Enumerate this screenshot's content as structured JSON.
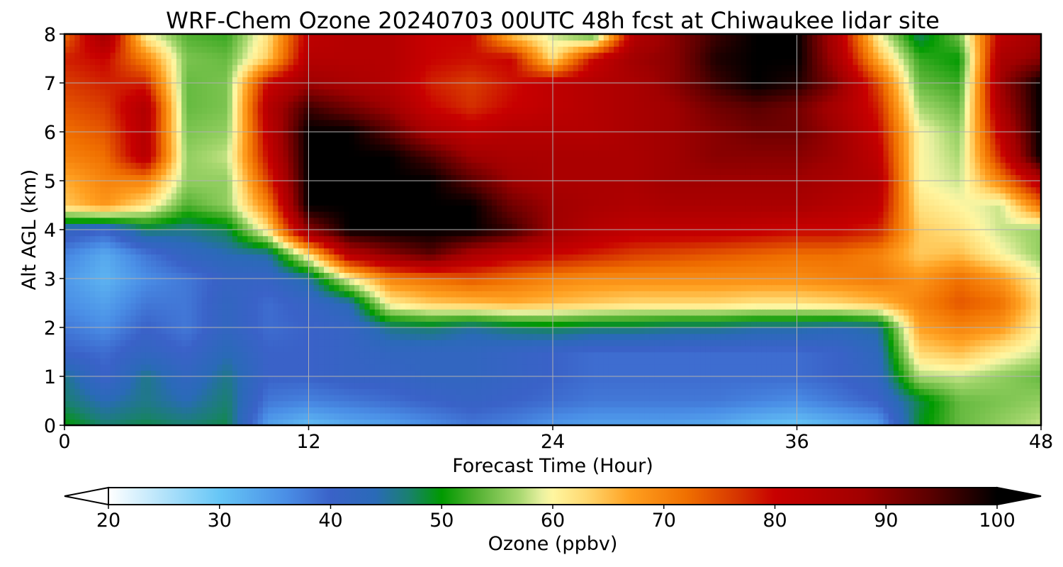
{
  "chart_data": {
    "type": "heatmap",
    "title": "WRF-Chem Ozone  20240703 00UTC 48h fcst at Chiwaukee lidar site",
    "xlabel": "Forecast Time (Hour)",
    "ylabel": "Alt AGL (km)",
    "xlim": [
      0,
      48
    ],
    "ylim": [
      0,
      8
    ],
    "xticks": [
      "0",
      "12",
      "24",
      "36",
      "48"
    ],
    "yticks": [
      "0",
      "1",
      "2",
      "3",
      "4",
      "5",
      "6",
      "7",
      "8"
    ],
    "grid": true,
    "colorbar": {
      "label": "Ozone  (ppbv)",
      "min": 20,
      "max": 100,
      "extend": "both",
      "ticks": [
        "20",
        "30",
        "40",
        "50",
        "60",
        "70",
        "80",
        "90",
        "100"
      ],
      "colors": [
        {
          "v": 20,
          "c": "#ffffff"
        },
        {
          "v": 30,
          "c": "#66c6f6"
        },
        {
          "v": 36,
          "c": "#4a8ee6"
        },
        {
          "v": 40,
          "c": "#3a62c8"
        },
        {
          "v": 44,
          "c": "#2a6ab8"
        },
        {
          "v": 47,
          "c": "#1a8070"
        },
        {
          "v": 50,
          "c": "#009a00"
        },
        {
          "v": 53,
          "c": "#50b030"
        },
        {
          "v": 57,
          "c": "#a8d870"
        },
        {
          "v": 59,
          "c": "#e8f0a0"
        },
        {
          "v": 60,
          "c": "#fff6a0"
        },
        {
          "v": 63,
          "c": "#ffd870"
        },
        {
          "v": 67,
          "c": "#ffa020"
        },
        {
          "v": 72,
          "c": "#f07000"
        },
        {
          "v": 77,
          "c": "#d43000"
        },
        {
          "v": 80,
          "c": "#c80000"
        },
        {
          "v": 88,
          "c": "#a00000"
        },
        {
          "v": 94,
          "c": "#5a0000"
        },
        {
          "v": 100,
          "c": "#000000"
        }
      ]
    },
    "x": [
      0,
      2,
      4,
      6,
      8,
      10,
      12,
      14,
      16,
      18,
      20,
      22,
      24,
      26,
      28,
      30,
      32,
      34,
      36,
      38,
      40,
      42,
      44,
      46,
      48
    ],
    "y": [
      0,
      0.5,
      1,
      1.5,
      2,
      2.5,
      3,
      3.5,
      4,
      4.5,
      5,
      5.5,
      6,
      6.5,
      7,
      7.5,
      8
    ],
    "z": [
      [
        50,
        47,
        48,
        47,
        48,
        34,
        31,
        33,
        34,
        36,
        38,
        37,
        35,
        34,
        34,
        34,
        33,
        31,
        30,
        32,
        34,
        49,
        54,
        56,
        58
      ],
      [
        47,
        44,
        46,
        44,
        47,
        38,
        37,
        38,
        39,
        40,
        41,
        40,
        39,
        38,
        38,
        38,
        38,
        37,
        36,
        38,
        40,
        48,
        54,
        55,
        56
      ],
      [
        46,
        40,
        46,
        42,
        46,
        40,
        40,
        41,
        41,
        42,
        42,
        41,
        40,
        39,
        39,
        39,
        39,
        39,
        39,
        40,
        42,
        57,
        58,
        56,
        54
      ],
      [
        40,
        39,
        42,
        40,
        44,
        40,
        40,
        41,
        42,
        42,
        42,
        41,
        40,
        39,
        39,
        39,
        39,
        39,
        39,
        40,
        43,
        63,
        65,
        61,
        58
      ],
      [
        38,
        36,
        40,
        38,
        42,
        39,
        40,
        41,
        46,
        47,
        45,
        47,
        48,
        47,
        47,
        46,
        46,
        45,
        45,
        44,
        45,
        67,
        70,
        68,
        60
      ],
      [
        36,
        34,
        38,
        38,
        42,
        39,
        41,
        44,
        61,
        64,
        65,
        66,
        65,
        64,
        63,
        63,
        63,
        62,
        62,
        63,
        65,
        70,
        74,
        72,
        62
      ],
      [
        35,
        32,
        36,
        38,
        41,
        41,
        45,
        60,
        70,
        72,
        74,
        72,
        70,
        69,
        69,
        69,
        69,
        69,
        69,
        70,
        71,
        68,
        72,
        68,
        60
      ],
      [
        37,
        33,
        38,
        42,
        44,
        45,
        62,
        84,
        90,
        94,
        86,
        82,
        80,
        78,
        76,
        75,
        74,
        73,
        72,
        72,
        70,
        64,
        65,
        60,
        56
      ],
      [
        42,
        40,
        47,
        46,
        48,
        62,
        90,
        100,
        100,
        100,
        100,
        96,
        88,
        84,
        82,
        82,
        82,
        81,
        80,
        80,
        78,
        64,
        62,
        58,
        56
      ],
      [
        64,
        68,
        62,
        53,
        56,
        70,
        100,
        100,
        100,
        100,
        100,
        92,
        88,
        86,
        85,
        86,
        86,
        86,
        86,
        84,
        82,
        62,
        60,
        58,
        72
      ],
      [
        66,
        70,
        70,
        56,
        56,
        76,
        100,
        100,
        100,
        100,
        94,
        88,
        86,
        86,
        86,
        88,
        88,
        88,
        88,
        86,
        84,
        60,
        58,
        70,
        84
      ],
      [
        70,
        72,
        84,
        56,
        58,
        80,
        100,
        100,
        100,
        95,
        88,
        86,
        86,
        86,
        86,
        88,
        90,
        90,
        90,
        88,
        82,
        60,
        57,
        78,
        100
      ],
      [
        72,
        74,
        84,
        55,
        56,
        82,
        100,
        100,
        94,
        86,
        82,
        84,
        84,
        84,
        86,
        88,
        90,
        92,
        92,
        88,
        80,
        60,
        56,
        82,
        100
      ],
      [
        74,
        76,
        85,
        54,
        55,
        84,
        96,
        92,
        88,
        80,
        77,
        80,
        82,
        84,
        86,
        88,
        92,
        94,
        92,
        86,
        78,
        57,
        54,
        86,
        100
      ],
      [
        76,
        78,
        78,
        54,
        55,
        80,
        88,
        86,
        84,
        78,
        76,
        79,
        82,
        84,
        86,
        90,
        96,
        100,
        98,
        90,
        75,
        54,
        52,
        88,
        100
      ],
      [
        78,
        80,
        70,
        55,
        54,
        64,
        84,
        84,
        84,
        80,
        79,
        80,
        62,
        80,
        88,
        90,
        98,
        100,
        100,
        86,
        66,
        52,
        50,
        86,
        90
      ],
      [
        72,
        88,
        60,
        53,
        52,
        62,
        82,
        84,
        84,
        80,
        80,
        64,
        58,
        52,
        84,
        90,
        96,
        100,
        100,
        84,
        60,
        47,
        55,
        82,
        88
      ]
    ]
  }
}
